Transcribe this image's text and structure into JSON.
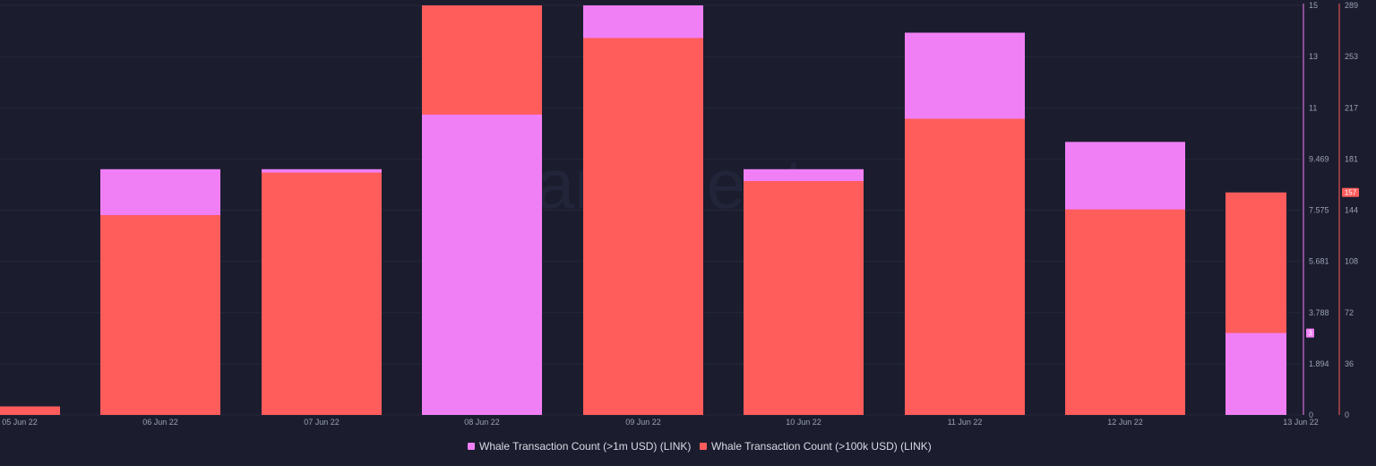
{
  "chart_data": {
    "type": "bar",
    "stacked": true,
    "categories": [
      "05 Jun 22",
      "06 Jun 22",
      "07 Jun 22",
      "08 Jun 22",
      "09 Jun 22",
      "10 Jun 22",
      "11 Jun 22",
      "12 Jun 22",
      "13 Jun 22"
    ],
    "series": [
      {
        "name": "Whale Transaction Count (>1m USD) (LINK)",
        "color": "#f07ff5",
        "axis": "left",
        "values": [
          0,
          9,
          9,
          11,
          15,
          9,
          14,
          10,
          3
        ]
      },
      {
        "name": "Whale Transaction Count (>100k USD) (LINK)",
        "color": "#ff5c5c",
        "axis": "right",
        "values": [
          6,
          141,
          171,
          289,
          266,
          165,
          209,
          145,
          157
        ]
      }
    ],
    "left_axis": {
      "range": [
        0,
        15
      ],
      "ticks": [
        "0",
        "1.894",
        "3.788",
        "5.681",
        "7.575",
        "9.469",
        "11",
        "13",
        "15"
      ],
      "color": "#f07ff5",
      "current_value_badge": "3"
    },
    "right_axis": {
      "range": [
        0,
        289
      ],
      "ticks": [
        "0",
        "36",
        "72",
        "108",
        "144",
        "181",
        "217",
        "253",
        "289"
      ],
      "color": "#ff5c5c",
      "current_value_badge": "157"
    },
    "grid": true,
    "legend_position": "bottom-center",
    "watermark": "santiment"
  }
}
